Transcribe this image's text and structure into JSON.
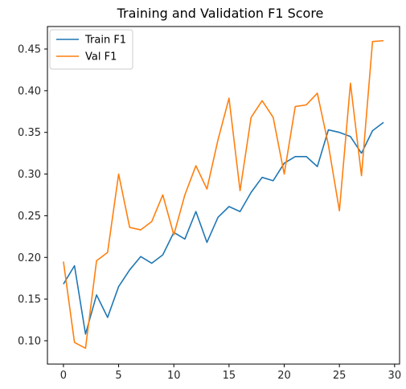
{
  "chart_data": {
    "type": "line",
    "title": "Training and Validation F1 Score",
    "xlabel": "",
    "ylabel": "",
    "xlim": [
      -1.45,
      30.45
    ],
    "ylim": [
      0.072,
      0.477
    ],
    "x_ticks": [
      0,
      5,
      10,
      15,
      20,
      25,
      30
    ],
    "y_ticks": [
      0.1,
      0.15,
      0.2,
      0.25,
      0.3,
      0.35,
      0.4,
      0.45
    ],
    "y_tick_labels": [
      "0.10",
      "0.15",
      "0.20",
      "0.25",
      "0.30",
      "0.35",
      "0.40",
      "0.45"
    ],
    "x_tick_labels": [
      "0",
      "5",
      "10",
      "15",
      "20",
      "25",
      "30"
    ],
    "grid": false,
    "legend_position": "top-left",
    "x": [
      0,
      1,
      2,
      3,
      4,
      5,
      6,
      7,
      8,
      9,
      10,
      11,
      12,
      13,
      14,
      15,
      16,
      17,
      18,
      19,
      20,
      21,
      22,
      23,
      24,
      25,
      26,
      27,
      28,
      29
    ],
    "series": [
      {
        "name": "Train F1",
        "color": "#1f77b4",
        "values": [
          0.168,
          0.19,
          0.108,
          0.155,
          0.128,
          0.165,
          0.185,
          0.201,
          0.193,
          0.203,
          0.23,
          0.222,
          0.255,
          0.218,
          0.248,
          0.261,
          0.255,
          0.278,
          0.296,
          0.292,
          0.313,
          0.321,
          0.321,
          0.309,
          0.353,
          0.35,
          0.345,
          0.325,
          0.352,
          0.362
        ]
      },
      {
        "name": "Val F1",
        "color": "#ff7f0e",
        "values": [
          0.195,
          0.098,
          0.091,
          0.196,
          0.206,
          0.3,
          0.236,
          0.233,
          0.243,
          0.275,
          0.227,
          0.275,
          0.31,
          0.282,
          0.341,
          0.391,
          0.28,
          0.368,
          0.388,
          0.368,
          0.3,
          0.381,
          0.383,
          0.397,
          0.335,
          0.256,
          0.409,
          0.298,
          0.459,
          0.46
        ]
      }
    ]
  }
}
